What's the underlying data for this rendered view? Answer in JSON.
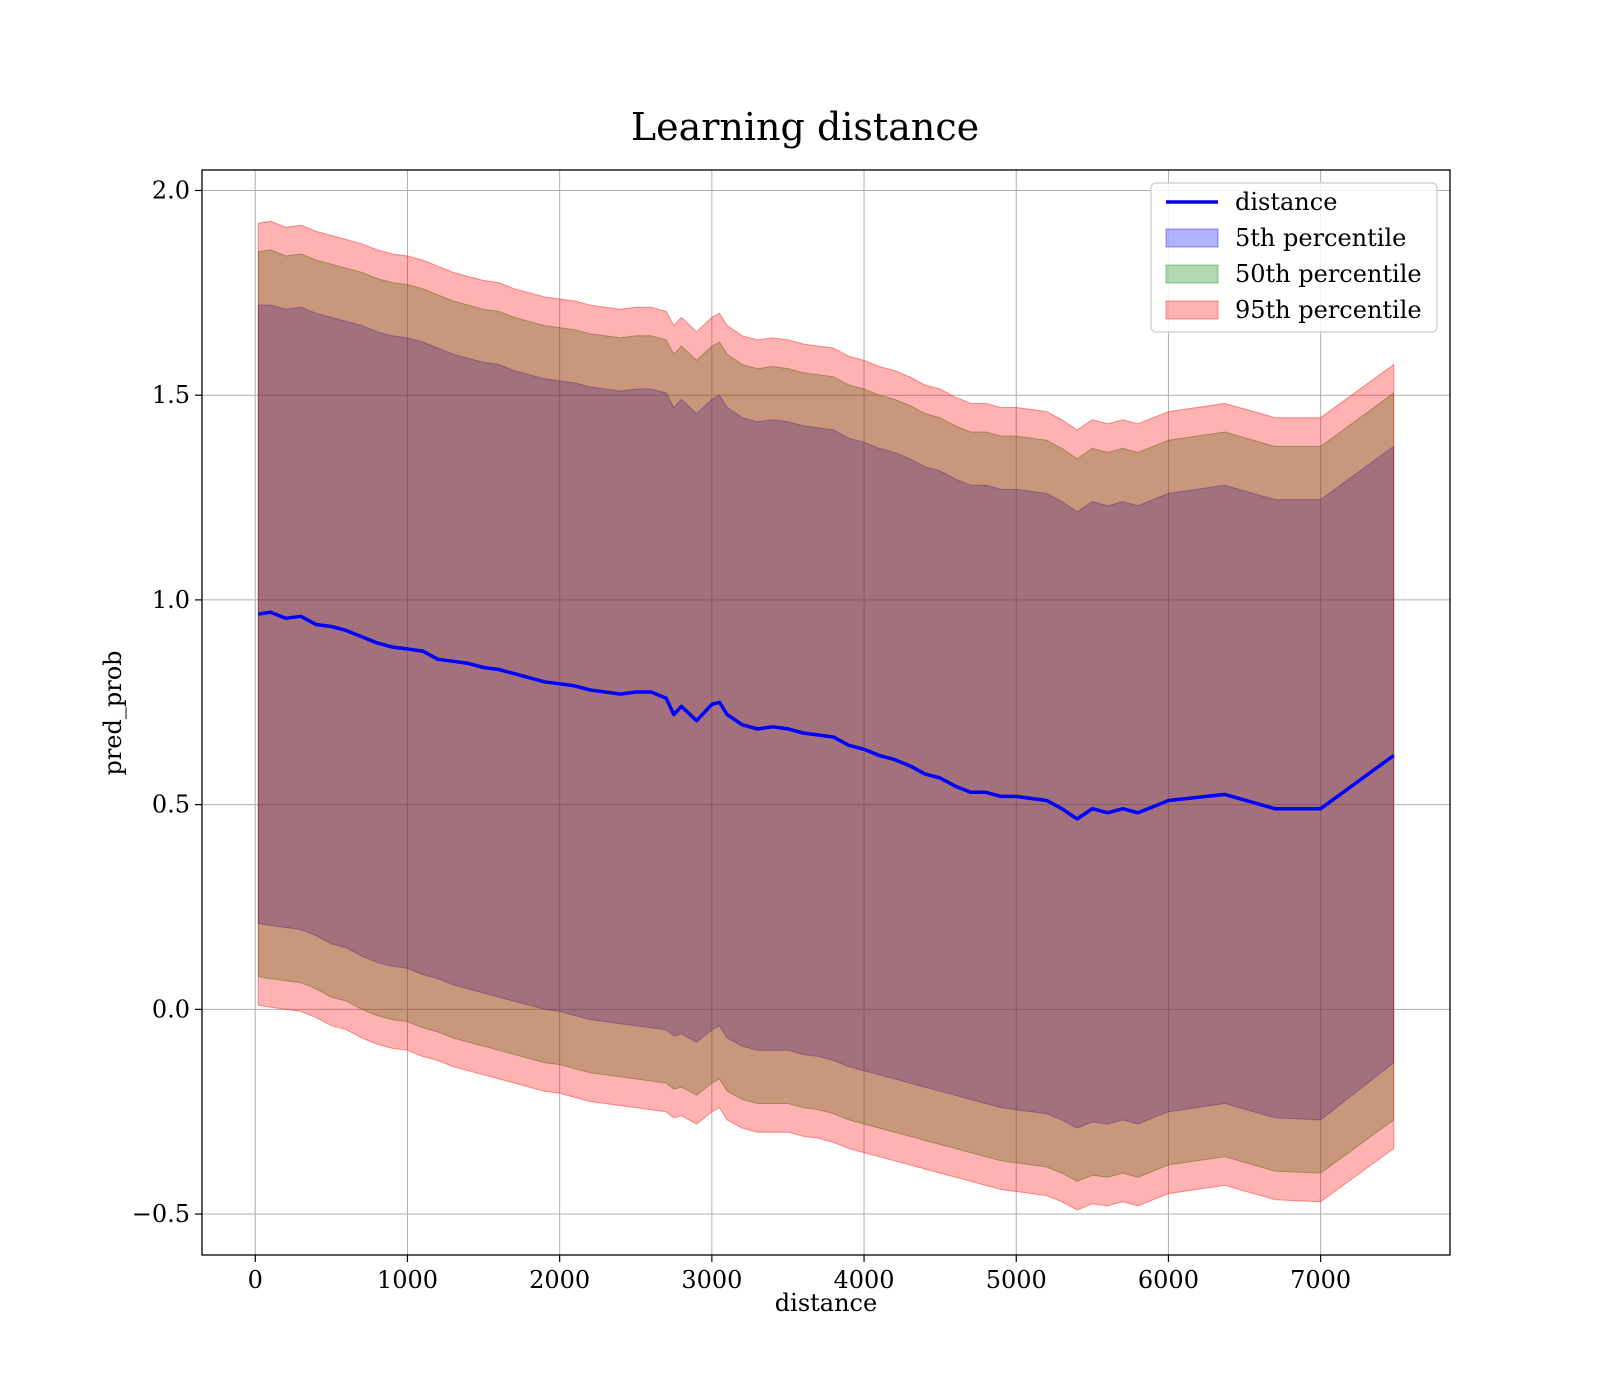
{
  "chart_data": {
    "type": "line",
    "title": "Learning distance",
    "xlabel": "distance",
    "ylabel": "pred_prob",
    "xlim": [
      -350,
      7850
    ],
    "ylim": [
      -0.6,
      2.05
    ],
    "xticks": [
      0,
      1000,
      2000,
      3000,
      4000,
      5000,
      6000,
      7000
    ],
    "xtick_labels": [
      "0",
      "1000",
      "2000",
      "3000",
      "4000",
      "5000",
      "6000",
      "7000"
    ],
    "yticks": [
      -0.5,
      0.0,
      0.5,
      1.0,
      1.5,
      2.0
    ],
    "ytick_labels": [
      "−0.5",
      "0.0",
      "0.5",
      "1.0",
      "1.5",
      "2.0"
    ],
    "grid": true,
    "legend_position": "top-right",
    "legend": [
      {
        "label": "distance",
        "kind": "line",
        "color": "#0000ff"
      },
      {
        "label": "5th percentile",
        "kind": "patch",
        "color": "#0000ff"
      },
      {
        "label": "50th percentile",
        "kind": "patch",
        "color": "#008000"
      },
      {
        "label": "95th percentile",
        "kind": "patch",
        "color": "#ff0000"
      }
    ],
    "x": [
      20,
      100,
      200,
      300,
      400,
      500,
      600,
      700,
      800,
      900,
      1000,
      1100,
      1200,
      1300,
      1400,
      1500,
      1600,
      1700,
      1800,
      1900,
      2000,
      2100,
      2200,
      2300,
      2400,
      2500,
      2600,
      2700,
      2750,
      2800,
      2900,
      3000,
      3050,
      3100,
      3200,
      3300,
      3400,
      3500,
      3600,
      3700,
      3800,
      3900,
      4000,
      4100,
      4200,
      4300,
      4400,
      4500,
      4600,
      4700,
      4800,
      4900,
      5000,
      5100,
      5200,
      5300,
      5400,
      5500,
      5600,
      5700,
      5800,
      5900,
      6000,
      6370,
      6700,
      7000,
      7480
    ],
    "series": [
      {
        "name": "distance",
        "color": "#0000ff",
        "values": [
          0.965,
          0.97,
          0.955,
          0.96,
          0.94,
          0.935,
          0.925,
          0.91,
          0.895,
          0.885,
          0.88,
          0.875,
          0.855,
          0.85,
          0.845,
          0.835,
          0.83,
          0.82,
          0.81,
          0.8,
          0.795,
          0.79,
          0.78,
          0.775,
          0.77,
          0.775,
          0.775,
          0.76,
          0.72,
          0.74,
          0.705,
          0.745,
          0.75,
          0.72,
          0.695,
          0.685,
          0.69,
          0.685,
          0.675,
          0.67,
          0.665,
          0.645,
          0.635,
          0.62,
          0.61,
          0.595,
          0.575,
          0.565,
          0.545,
          0.53,
          0.53,
          0.52,
          0.52,
          0.515,
          0.51,
          0.49,
          0.465,
          0.49,
          0.48,
          0.49,
          0.48,
          0.495,
          0.51,
          0.525,
          0.49,
          0.49,
          0.62
        ]
      }
    ],
    "bands": [
      {
        "name": "5th percentile",
        "color": "#0000ff",
        "opacity": 0.3,
        "lower": [
          0.21,
          0.205,
          0.2,
          0.195,
          0.18,
          0.16,
          0.15,
          0.13,
          0.115,
          0.105,
          0.1,
          0.085,
          0.075,
          0.06,
          0.05,
          0.04,
          0.03,
          0.02,
          0.01,
          0.0,
          -0.005,
          -0.015,
          -0.025,
          -0.03,
          -0.035,
          -0.04,
          -0.045,
          -0.05,
          -0.065,
          -0.06,
          -0.08,
          -0.05,
          -0.04,
          -0.07,
          -0.09,
          -0.1,
          -0.1,
          -0.1,
          -0.11,
          -0.115,
          -0.125,
          -0.14,
          -0.15,
          -0.16,
          -0.17,
          -0.18,
          -0.19,
          -0.2,
          -0.21,
          -0.22,
          -0.23,
          -0.24,
          -0.245,
          -0.25,
          -0.255,
          -0.27,
          -0.29,
          -0.275,
          -0.28,
          -0.27,
          -0.28,
          -0.265,
          -0.25,
          -0.23,
          -0.265,
          -0.27,
          -0.13
        ],
        "upper": [
          1.72,
          1.72,
          1.71,
          1.715,
          1.7,
          1.69,
          1.68,
          1.67,
          1.655,
          1.645,
          1.64,
          1.63,
          1.615,
          1.6,
          1.59,
          1.58,
          1.575,
          1.56,
          1.55,
          1.54,
          1.535,
          1.53,
          1.52,
          1.515,
          1.51,
          1.515,
          1.515,
          1.505,
          1.47,
          1.49,
          1.455,
          1.49,
          1.5,
          1.47,
          1.445,
          1.435,
          1.44,
          1.435,
          1.425,
          1.42,
          1.415,
          1.395,
          1.385,
          1.37,
          1.36,
          1.345,
          1.325,
          1.315,
          1.295,
          1.28,
          1.28,
          1.27,
          1.27,
          1.265,
          1.26,
          1.24,
          1.215,
          1.24,
          1.23,
          1.24,
          1.23,
          1.245,
          1.26,
          1.28,
          1.245,
          1.245,
          1.375
        ]
      },
      {
        "name": "50th percentile",
        "color": "#008000",
        "opacity": 0.3,
        "lower": [
          0.08,
          0.075,
          0.07,
          0.065,
          0.05,
          0.03,
          0.02,
          0.0,
          -0.015,
          -0.025,
          -0.03,
          -0.045,
          -0.055,
          -0.07,
          -0.08,
          -0.09,
          -0.1,
          -0.11,
          -0.12,
          -0.13,
          -0.135,
          -0.145,
          -0.155,
          -0.16,
          -0.165,
          -0.17,
          -0.175,
          -0.18,
          -0.195,
          -0.19,
          -0.21,
          -0.18,
          -0.17,
          -0.2,
          -0.22,
          -0.23,
          -0.23,
          -0.23,
          -0.24,
          -0.245,
          -0.255,
          -0.27,
          -0.28,
          -0.29,
          -0.3,
          -0.31,
          -0.32,
          -0.33,
          -0.34,
          -0.35,
          -0.36,
          -0.37,
          -0.375,
          -0.38,
          -0.385,
          -0.4,
          -0.42,
          -0.405,
          -0.41,
          -0.4,
          -0.41,
          -0.395,
          -0.38,
          -0.36,
          -0.395,
          -0.4,
          -0.27
        ],
        "upper": [
          1.85,
          1.855,
          1.84,
          1.845,
          1.83,
          1.82,
          1.81,
          1.8,
          1.785,
          1.775,
          1.77,
          1.76,
          1.745,
          1.73,
          1.72,
          1.71,
          1.705,
          1.69,
          1.68,
          1.67,
          1.665,
          1.66,
          1.65,
          1.645,
          1.64,
          1.645,
          1.645,
          1.635,
          1.6,
          1.62,
          1.585,
          1.62,
          1.63,
          1.6,
          1.575,
          1.565,
          1.57,
          1.565,
          1.555,
          1.55,
          1.545,
          1.525,
          1.515,
          1.5,
          1.49,
          1.475,
          1.455,
          1.445,
          1.425,
          1.41,
          1.41,
          1.4,
          1.4,
          1.395,
          1.39,
          1.37,
          1.345,
          1.37,
          1.36,
          1.37,
          1.36,
          1.375,
          1.39,
          1.41,
          1.375,
          1.375,
          1.505
        ]
      },
      {
        "name": "95th percentile",
        "color": "#ff0000",
        "opacity": 0.3,
        "lower": [
          0.01,
          0.005,
          0.0,
          -0.005,
          -0.02,
          -0.04,
          -0.05,
          -0.07,
          -0.085,
          -0.095,
          -0.1,
          -0.115,
          -0.125,
          -0.14,
          -0.15,
          -0.16,
          -0.17,
          -0.18,
          -0.19,
          -0.2,
          -0.205,
          -0.215,
          -0.225,
          -0.23,
          -0.235,
          -0.24,
          -0.245,
          -0.25,
          -0.265,
          -0.26,
          -0.28,
          -0.25,
          -0.24,
          -0.27,
          -0.29,
          -0.3,
          -0.3,
          -0.3,
          -0.31,
          -0.315,
          -0.325,
          -0.34,
          -0.35,
          -0.36,
          -0.37,
          -0.38,
          -0.39,
          -0.4,
          -0.41,
          -0.42,
          -0.43,
          -0.44,
          -0.445,
          -0.45,
          -0.455,
          -0.47,
          -0.49,
          -0.475,
          -0.48,
          -0.47,
          -0.48,
          -0.465,
          -0.45,
          -0.43,
          -0.465,
          -0.47,
          -0.34
        ],
        "upper": [
          1.92,
          1.925,
          1.91,
          1.915,
          1.9,
          1.89,
          1.88,
          1.87,
          1.855,
          1.845,
          1.84,
          1.83,
          1.815,
          1.8,
          1.79,
          1.78,
          1.775,
          1.76,
          1.75,
          1.74,
          1.735,
          1.73,
          1.72,
          1.715,
          1.71,
          1.715,
          1.715,
          1.705,
          1.67,
          1.69,
          1.655,
          1.69,
          1.7,
          1.67,
          1.645,
          1.635,
          1.64,
          1.635,
          1.625,
          1.62,
          1.615,
          1.595,
          1.585,
          1.57,
          1.56,
          1.545,
          1.525,
          1.515,
          1.495,
          1.48,
          1.48,
          1.47,
          1.47,
          1.465,
          1.46,
          1.44,
          1.415,
          1.44,
          1.43,
          1.44,
          1.43,
          1.445,
          1.46,
          1.48,
          1.445,
          1.445,
          1.575
        ]
      }
    ]
  }
}
